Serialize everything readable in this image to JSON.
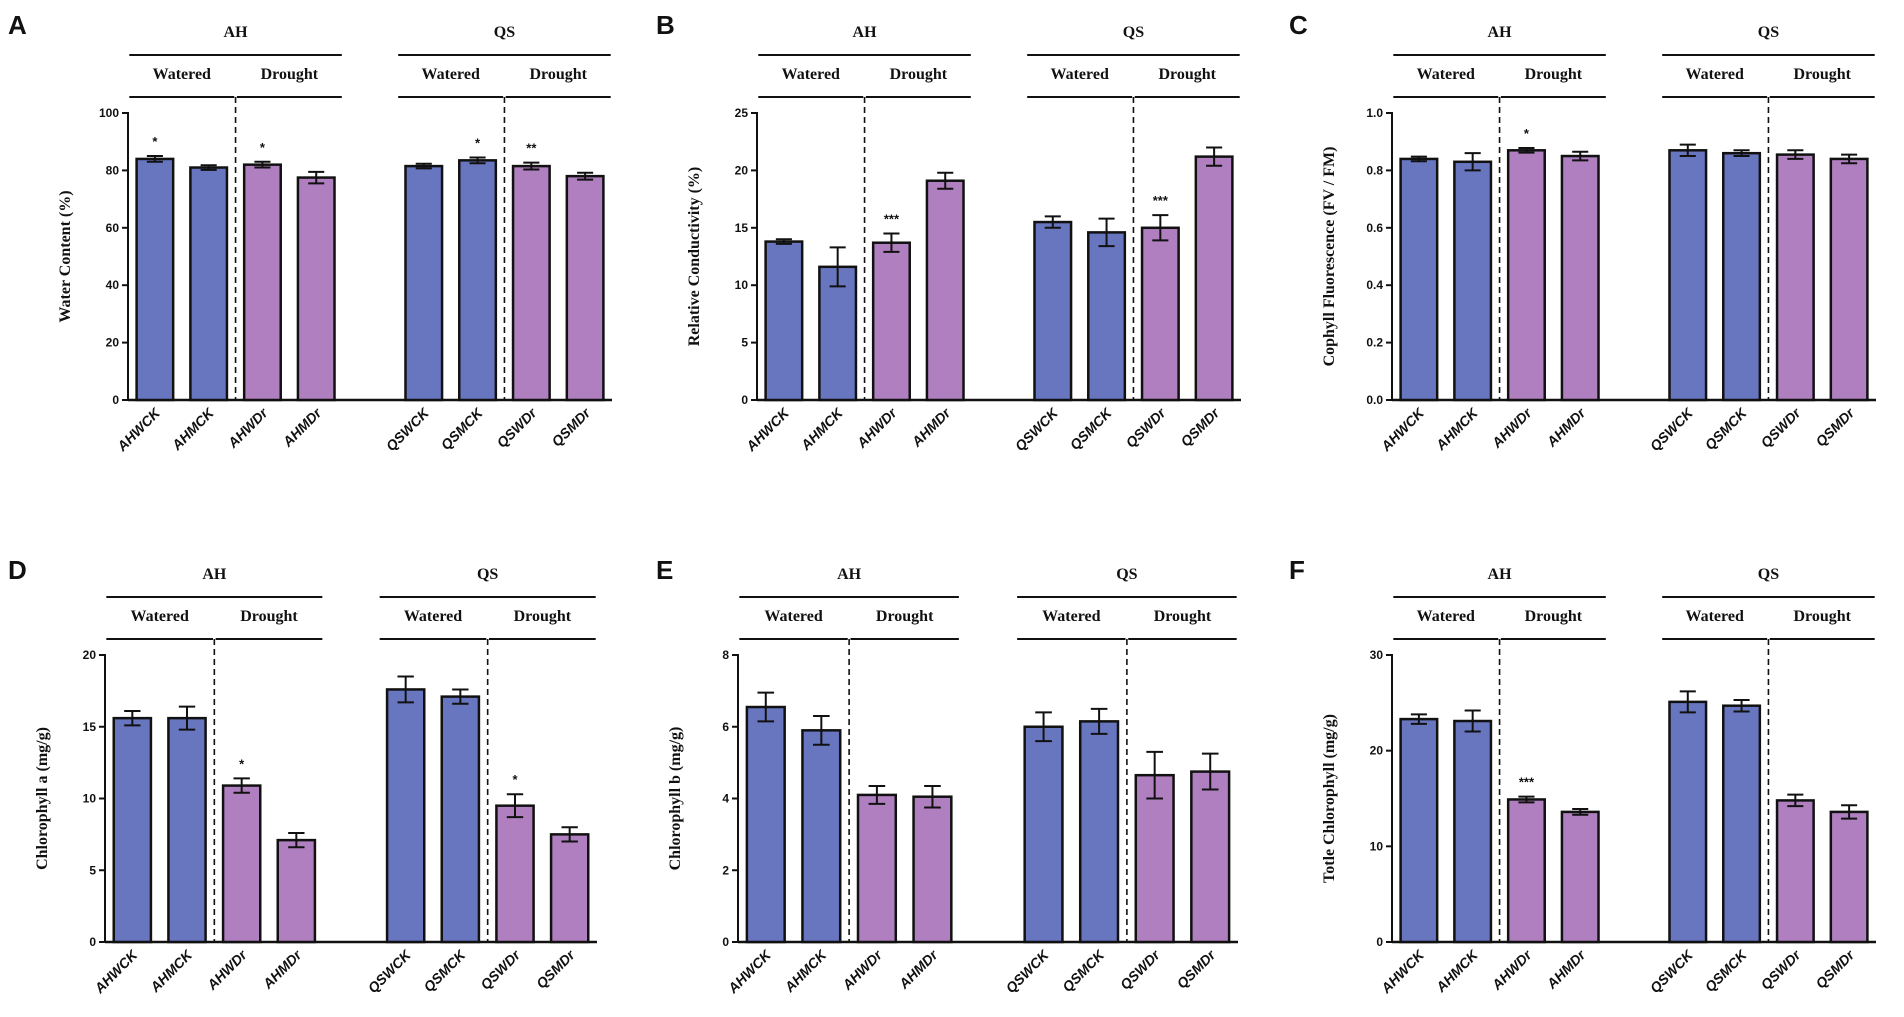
{
  "colors": {
    "watered": "#6876c0",
    "drought": "#b07fc0",
    "stroke": "#111111"
  },
  "chart_data": [
    {
      "type": "bar",
      "panel": "A",
      "ylabel": "Water Content  (%)",
      "ylim": [
        0,
        100
      ],
      "yticks": [
        "0",
        "20",
        "40",
        "60",
        "80",
        "100"
      ],
      "groups": [
        "AH",
        "QS"
      ],
      "subgroups": [
        "Watered",
        "Drought",
        "Watered",
        "Drought"
      ],
      "categories": [
        "AHWCK",
        "AHMCK",
        "AHWDr",
        "AHMDr",
        "QSWCK",
        "QSMCK",
        "QSWDr",
        "QSMDr"
      ],
      "values": [
        84,
        81,
        82,
        77.5,
        81.5,
        83.5,
        81.5,
        78
      ],
      "errors": [
        1,
        0.8,
        1,
        2,
        0.8,
        1,
        1.2,
        1.2
      ],
      "annotations": [
        "*",
        "",
        "*",
        "",
        "",
        "*",
        "**",
        ""
      ]
    },
    {
      "type": "bar",
      "panel": "B",
      "ylabel": "Relative Conductivity  (%)",
      "ylim": [
        0,
        25
      ],
      "yticks": [
        "0",
        "5",
        "10",
        "15",
        "20",
        "25"
      ],
      "groups": [
        "AH",
        "QS"
      ],
      "subgroups": [
        "Watered",
        "Drought",
        "Watered",
        "Drought"
      ],
      "categories": [
        "AHWCK",
        "AHMCK",
        "AHWDr",
        "AHMDr",
        "QSWCK",
        "QSMCK",
        "QSWDr",
        "QSMDr"
      ],
      "values": [
        13.8,
        11.6,
        13.7,
        19.1,
        15.5,
        14.6,
        15,
        21.2
      ],
      "errors": [
        0.2,
        1.7,
        0.8,
        0.7,
        0.5,
        1.2,
        1.1,
        0.8
      ],
      "annotations": [
        "",
        "",
        "***",
        "",
        "",
        "",
        "***",
        ""
      ]
    },
    {
      "type": "bar",
      "panel": "C",
      "ylabel": "Cophyll Fluorescence  (FV / FM)",
      "ylim": [
        0,
        1.0
      ],
      "yticks": [
        "0.0",
        "0.2",
        "0.4",
        "0.6",
        "0.8",
        "1.0"
      ],
      "groups": [
        "AH",
        "QS"
      ],
      "subgroups": [
        "Watered",
        "Drought",
        "Watered",
        "Drought"
      ],
      "categories": [
        "AHWCK",
        "AHMCK",
        "AHWDr",
        "AHMDr",
        "QSWCK",
        "QSMCK",
        "QSWDr",
        "QSMDr"
      ],
      "values": [
        0.84,
        0.83,
        0.87,
        0.85,
        0.87,
        0.86,
        0.855,
        0.84
      ],
      "errors": [
        0.008,
        0.03,
        0.008,
        0.015,
        0.02,
        0.01,
        0.015,
        0.015
      ],
      "annotations": [
        "",
        "",
        "*",
        "",
        "",
        "",
        "",
        ""
      ]
    },
    {
      "type": "bar",
      "panel": "D",
      "ylabel": "Chlorophyll a  (mg/g)",
      "ylim": [
        0,
        20
      ],
      "yticks": [
        "0",
        "5",
        "10",
        "15",
        "20"
      ],
      "groups": [
        "AH",
        "QS"
      ],
      "subgroups": [
        "Watered",
        "Drought",
        "Watered",
        "Drought"
      ],
      "categories": [
        "AHWCK",
        "AHMCK",
        "AHWDr",
        "AHMDr",
        "QSWCK",
        "QSMCK",
        "QSWDr",
        "QSMDr"
      ],
      "values": [
        15.6,
        15.6,
        10.9,
        7.1,
        17.6,
        17.1,
        9.5,
        7.5
      ],
      "errors": [
        0.5,
        0.8,
        0.5,
        0.5,
        0.9,
        0.5,
        0.8,
        0.5
      ],
      "annotations": [
        "",
        "",
        "*",
        "",
        "",
        "",
        "*",
        ""
      ]
    },
    {
      "type": "bar",
      "panel": "E",
      "ylabel": "Chlorophyll b  (mg/g)",
      "ylim": [
        0,
        8
      ],
      "yticks": [
        "0",
        "2",
        "4",
        "6",
        "8"
      ],
      "groups": [
        "AH",
        "QS"
      ],
      "subgroups": [
        "Watered",
        "Drought",
        "Watered",
        "Drought"
      ],
      "categories": [
        "AHWCK",
        "AHMCK",
        "AHWDr",
        "AHMDr",
        "QSWCK",
        "QSMCK",
        "QSWDr",
        "QSMDr"
      ],
      "values": [
        6.55,
        5.9,
        4.1,
        4.05,
        6.0,
        6.15,
        4.65,
        4.75
      ],
      "errors": [
        0.4,
        0.4,
        0.25,
        0.3,
        0.4,
        0.35,
        0.65,
        0.5
      ],
      "annotations": [
        "",
        "",
        "",
        "",
        "",
        "",
        "",
        ""
      ]
    },
    {
      "type": "bar",
      "panel": "F",
      "ylabel": "Totle Chlorophyll   (mg/g)",
      "ylim": [
        0,
        30
      ],
      "yticks": [
        "0",
        "10",
        "20",
        "30"
      ],
      "groups": [
        "AH",
        "QS"
      ],
      "subgroups": [
        "Watered",
        "Drought",
        "Watered",
        "Drought"
      ],
      "categories": [
        "AHWCK",
        "AHMCK",
        "AHWDr",
        "AHMDr",
        "QSWCK",
        "QSMCK",
        "QSWDr",
        "QSMDr"
      ],
      "values": [
        23.3,
        23.1,
        14.9,
        13.6,
        25.1,
        24.7,
        14.8,
        13.6
      ],
      "errors": [
        0.5,
        1.1,
        0.3,
        0.3,
        1.1,
        0.6,
        0.6,
        0.7
      ],
      "annotations": [
        "",
        "",
        "***",
        "",
        "",
        "",
        "",
        ""
      ]
    }
  ]
}
